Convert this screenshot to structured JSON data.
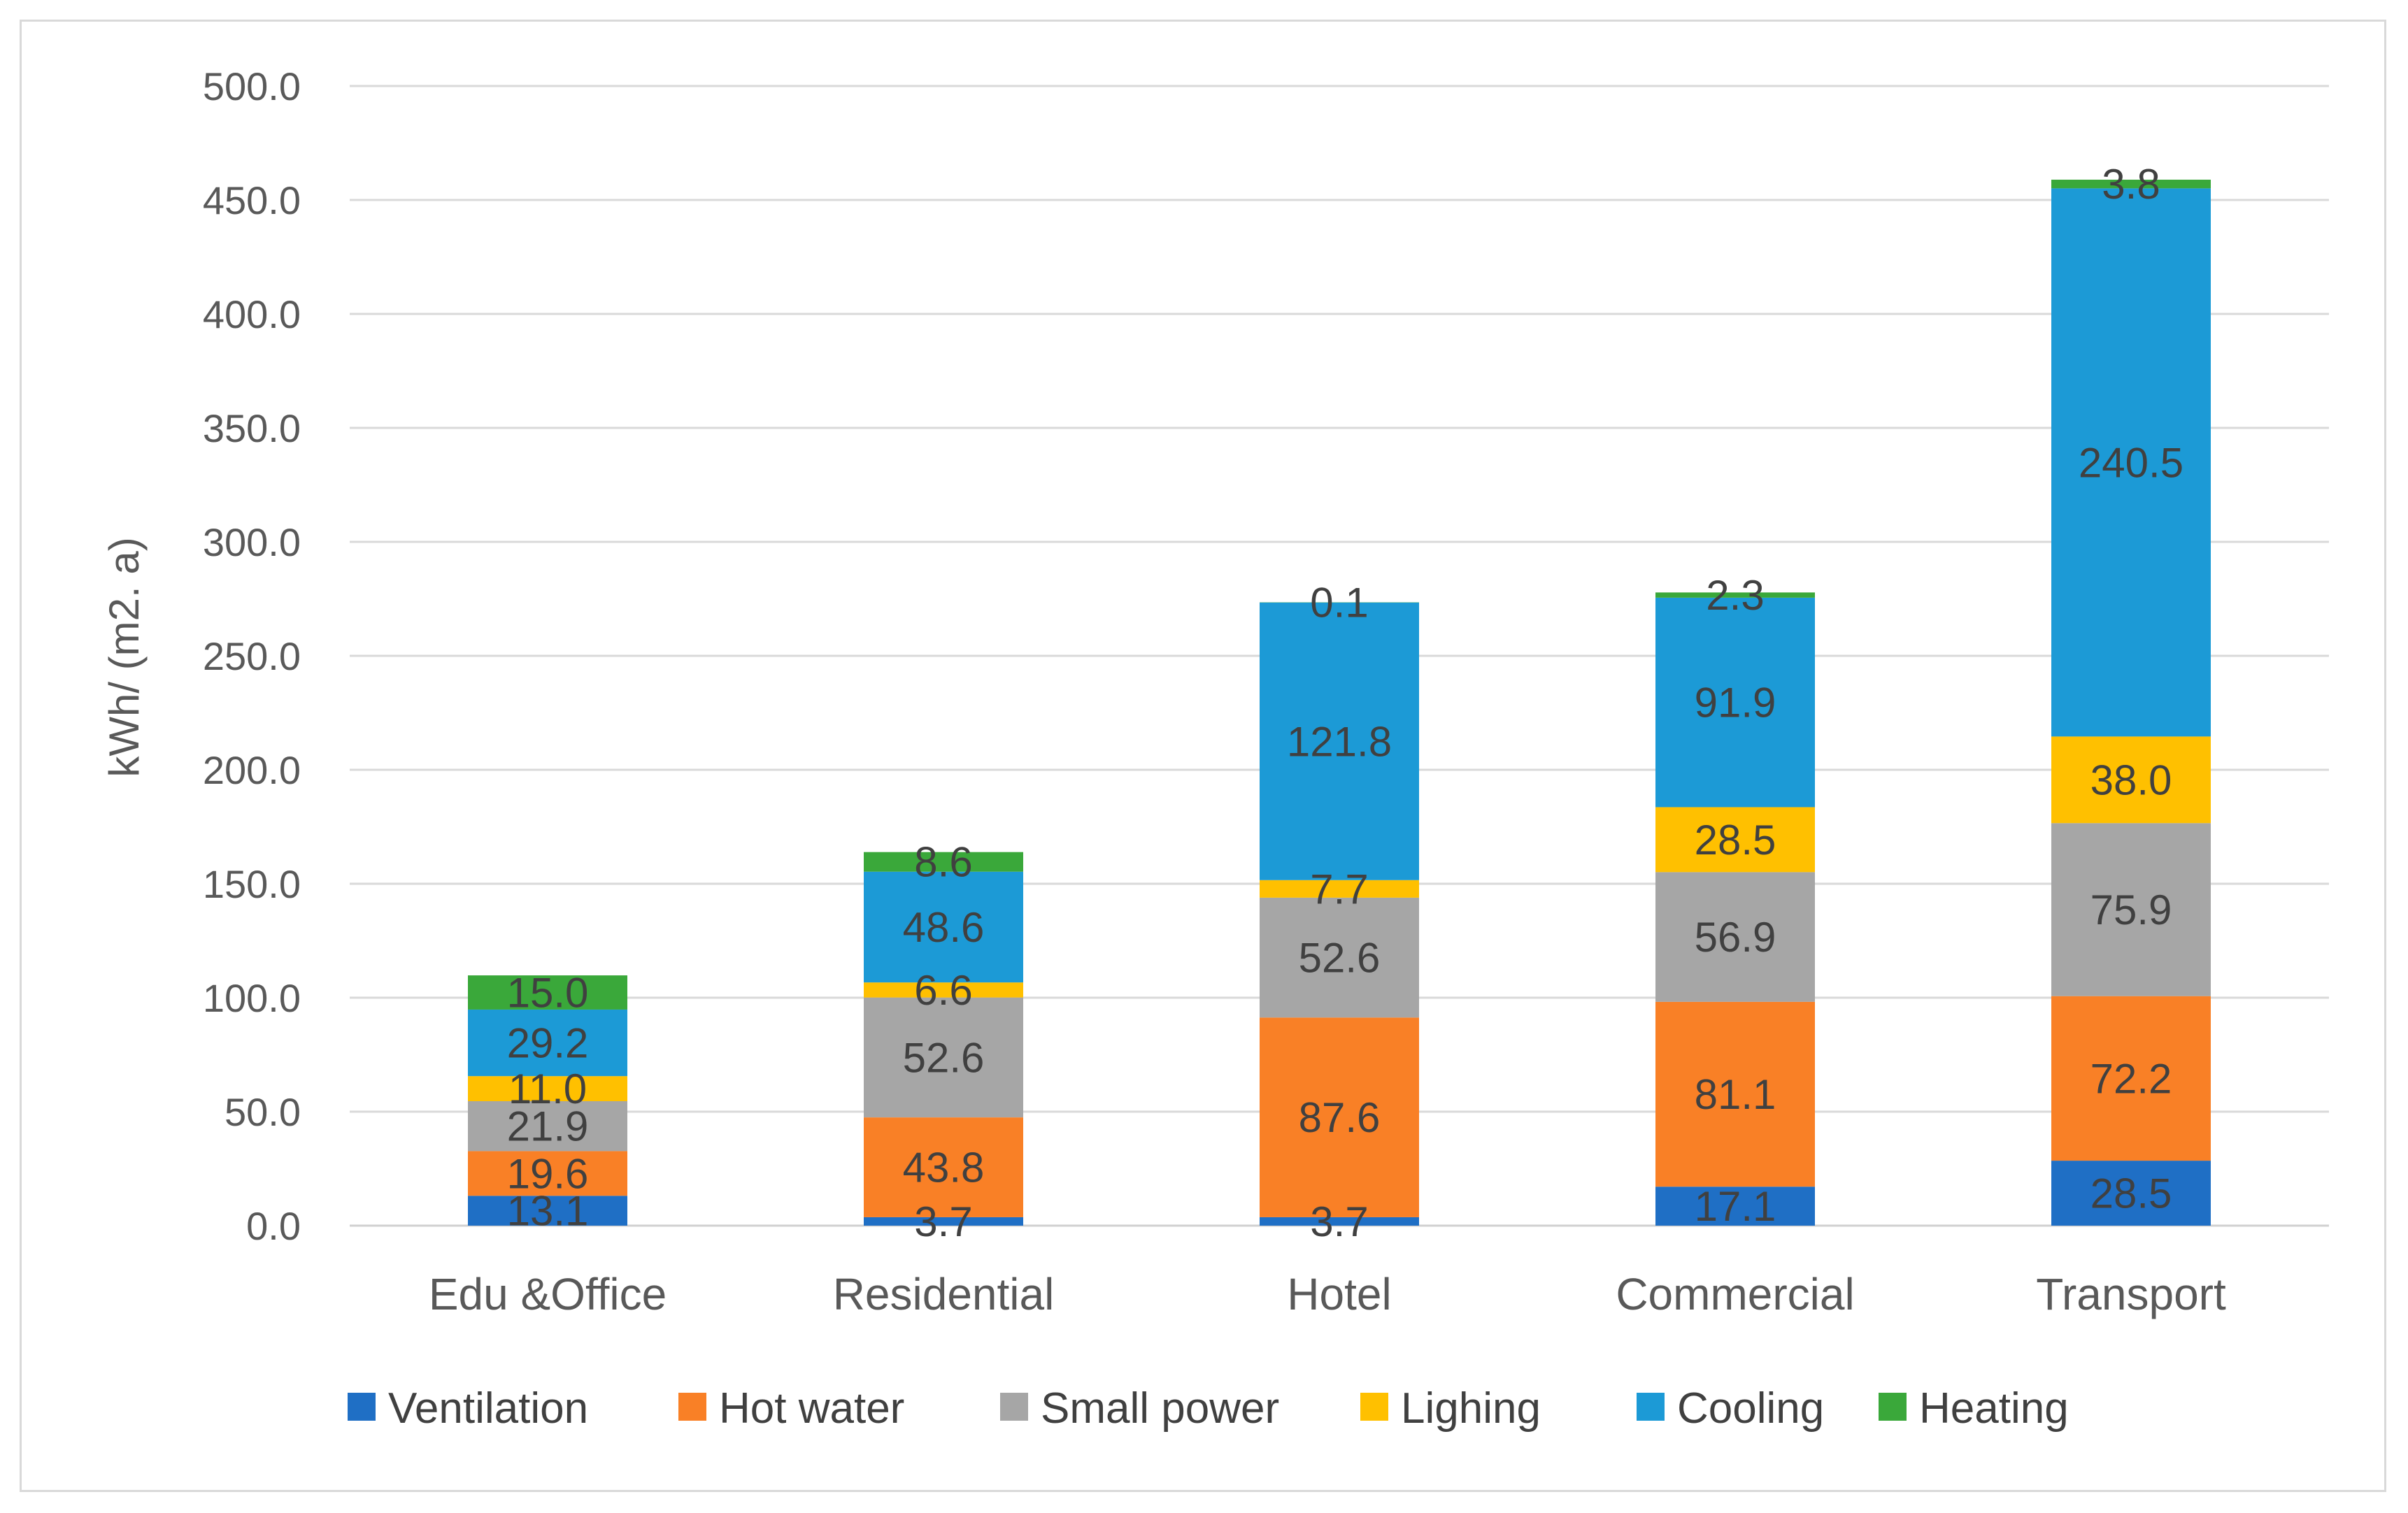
{
  "chart_data": {
    "type": "bar",
    "stacked": true,
    "title": "",
    "xlabel": "",
    "ylabel": "kWh/ (m2. a)",
    "ylim": [
      0,
      500
    ],
    "ytick_step": 50,
    "ytick_labels": [
      "0.0",
      "50.0",
      "100.0",
      "150.0",
      "200.0",
      "250.0",
      "300.0",
      "350.0",
      "400.0",
      "450.0",
      "500.0"
    ],
    "grid": true,
    "legend_position": "bottom",
    "categories": [
      "Edu &Office",
      "Residential",
      "Hotel",
      "Commercial",
      "Transport"
    ],
    "series": [
      {
        "name": "Ventilation",
        "color": "#1f6fc5",
        "values": [
          13.1,
          3.7,
          3.7,
          17.1,
          28.5
        ]
      },
      {
        "name": "Hot water",
        "color": "#f98026",
        "values": [
          19.6,
          43.8,
          87.6,
          81.1,
          72.2
        ]
      },
      {
        "name": "Small power",
        "color": "#a6a6a6",
        "values": [
          21.9,
          52.6,
          52.6,
          56.9,
          75.9
        ]
      },
      {
        "name": "Lighing",
        "color": "#ffc000",
        "values": [
          11.0,
          6.6,
          7.7,
          28.5,
          38.0
        ]
      },
      {
        "name": "Cooling",
        "color": "#1c9ad6",
        "values": [
          29.2,
          48.6,
          121.8,
          91.9,
          240.5
        ]
      },
      {
        "name": "Heating",
        "color": "#3aa83a",
        "values": [
          15.0,
          8.6,
          0.1,
          2.3,
          3.8
        ]
      }
    ]
  }
}
